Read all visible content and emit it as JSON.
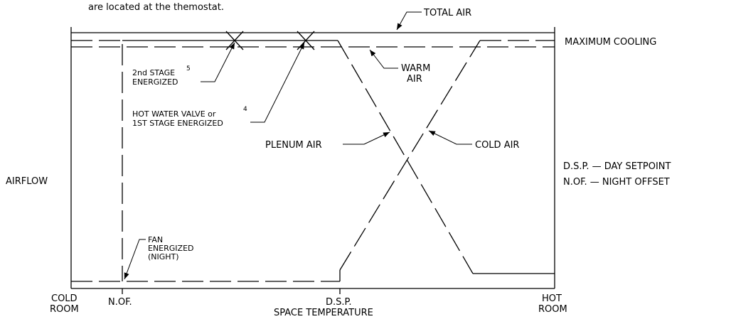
{
  "header": {
    "note": "are located at the themostat."
  },
  "labels": {
    "total_air": "TOTAL AIR",
    "maximum_cooling": "MAXIMUM COOLING",
    "second_stage": {
      "lines": [
        "2nd STAGE",
        "ENERGIZED"
      ],
      "ref": "5"
    },
    "warm_air": [
      "WARM",
      "AIR"
    ],
    "hot_water": {
      "lines": [
        "HOT WATER VALVE or",
        "1ST STAGE ENERGIZED"
      ],
      "ref": "4"
    },
    "plenum_air": "PLENUM AIR",
    "cold_air": "COLD AIR",
    "airflow": "AIRFLOW",
    "fan": [
      "FAN",
      "ENERGIZED",
      "(NIGHT)"
    ]
  },
  "legend": [
    "D.S.P. — DAY SETPOINT",
    "N.OF. — NIGHT OFFSET"
  ],
  "axis": {
    "cold_room": [
      "COLD",
      "ROOM"
    ],
    "nof": "N.OF.",
    "dsp": "D.S.P.",
    "title": "SPACE TEMPERATURE",
    "hot_room": [
      "HOT",
      "ROOM"
    ]
  }
}
